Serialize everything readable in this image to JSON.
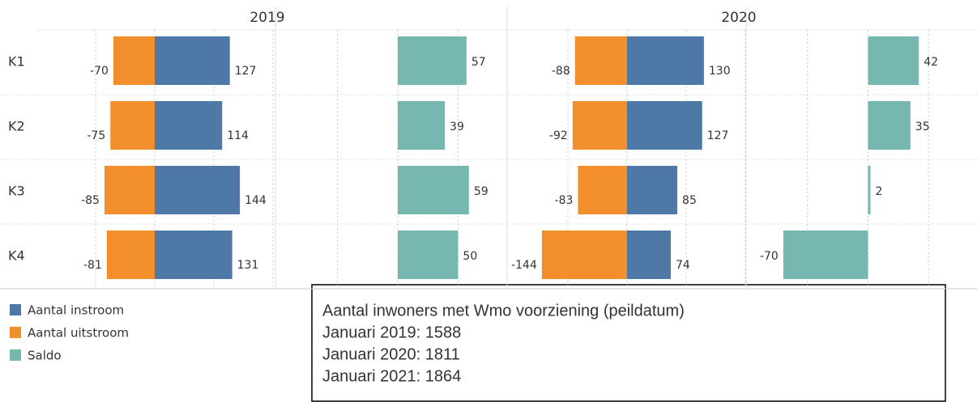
{
  "chart_data": {
    "type": "bar",
    "panels": [
      "2019",
      "2020"
    ],
    "categories": [
      "K1",
      "K2",
      "K3",
      "K4"
    ],
    "series": [
      {
        "name": "Aantal instroom",
        "color": "#4e79a7",
        "values": [
          [
            127,
            114,
            144,
            131
          ],
          [
            130,
            127,
            85,
            74
          ]
        ]
      },
      {
        "name": "Aantal uitstroom",
        "color": "#f28e2b",
        "values": [
          [
            -70,
            -75,
            -85,
            -81
          ],
          [
            -88,
            -92,
            -83,
            -144
          ]
        ]
      },
      {
        "name": "Saldo",
        "color": "#76b7b2",
        "values": [
          [
            57,
            39,
            59,
            50
          ],
          [
            42,
            35,
            2,
            -70
          ]
        ]
      }
    ],
    "xlim": [
      -200,
      200
    ],
    "xticks": [
      -100,
      0,
      100,
      200
    ],
    "x2lim": [
      -100,
      90
    ],
    "x2ticks": [
      -50,
      0,
      50
    ],
    "grid": true
  },
  "note": {
    "lines": [
      "Aantal inwoners met Wmo voorziening (peildatum)",
      "Januari 2019: 1588",
      "Januari 2020: 1811",
      "Januari 2021: 1864"
    ]
  }
}
